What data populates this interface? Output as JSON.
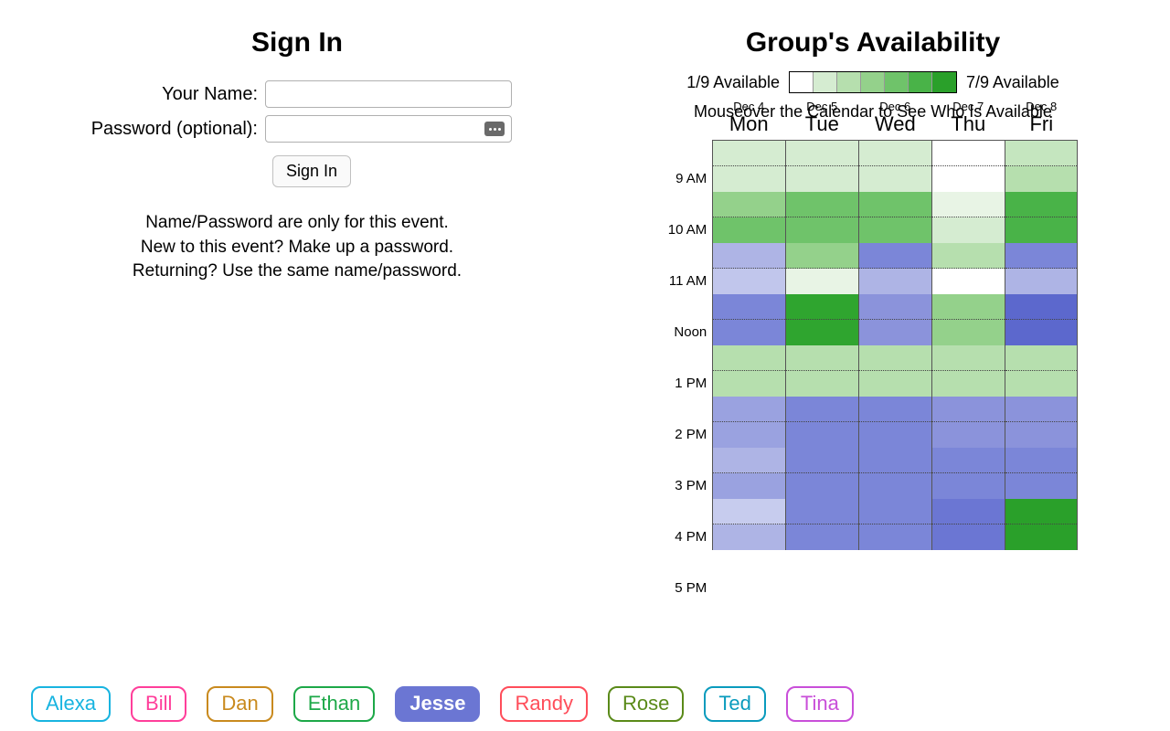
{
  "signin": {
    "title": "Sign In",
    "name_label": "Your Name:",
    "password_label": "Password (optional):",
    "button_label": "Sign In",
    "help_line1": "Name/Password are only for this event.",
    "help_line2": "New to this event? Make up a password.",
    "help_line3": "Returning? Use the same name/password."
  },
  "availability": {
    "title": "Group's Availability",
    "legend_min_label": "1/9 Available",
    "legend_max_label": "7/9 Available",
    "legend_colors": [
      "#ffffff",
      "#d5ecd1",
      "#b6dfae",
      "#94d18b",
      "#6fc36a",
      "#49b348",
      "#2aa02a"
    ],
    "mouseover_hint": "Mouseover the Calendar to See Who Is Available",
    "time_labels": [
      "9 AM",
      "10 AM",
      "11 AM",
      "Noon",
      "1 PM",
      "2 PM",
      "3 PM",
      "4 PM",
      "5 PM"
    ],
    "days": [
      {
        "date": "Dec 4",
        "name": "Mon"
      },
      {
        "date": "Dec 5",
        "name": "Tue"
      },
      {
        "date": "Dec 6",
        "name": "Wed"
      },
      {
        "date": "Dec 7",
        "name": "Thu"
      },
      {
        "date": "Dec 8",
        "name": "Fri"
      }
    ],
    "cells": [
      [
        [
          "#d5ecd1",
          "#d5ecd1"
        ],
        [
          "#94d18b",
          "#6fc36a"
        ],
        [
          "#aeb4e5",
          "#c1c6ec"
        ],
        [
          "#7b86d8",
          "#7b86d8"
        ],
        [
          "#b6dfae",
          "#b6dfae"
        ],
        [
          "#9aa2e0",
          "#9aa2e0"
        ],
        [
          "#aeb4e5",
          "#9aa2e0"
        ],
        [
          "#c7ccee",
          "#aeb4e5"
        ]
      ],
      [
        [
          "#d5ecd1",
          "#d5ecd1"
        ],
        [
          "#6fc36a",
          "#6fc36a"
        ],
        [
          "#94d18b",
          "#e8f4e5"
        ],
        [
          "#2fa52f",
          "#2fa52f"
        ],
        [
          "#b6dfae",
          "#b6dfae"
        ],
        [
          "#7b86d8",
          "#7b86d8"
        ],
        [
          "#7b86d8",
          "#7b86d8"
        ],
        [
          "#7b86d8",
          "#7b86d8"
        ]
      ],
      [
        [
          "#d5ecd1",
          "#d5ecd1"
        ],
        [
          "#6fc36a",
          "#6fc36a"
        ],
        [
          "#7b86d8",
          "#aeb4e5"
        ],
        [
          "#8b93db",
          "#8b93db"
        ],
        [
          "#b6dfae",
          "#b6dfae"
        ],
        [
          "#7b86d8",
          "#7b86d8"
        ],
        [
          "#7b86d8",
          "#7b86d8"
        ],
        [
          "#7b86d8",
          "#7b86d8"
        ]
      ],
      [
        [
          "#ffffff",
          "#ffffff"
        ],
        [
          "#e8f4e5",
          "#d5ecd1"
        ],
        [
          "#b6dfae",
          "#ffffff"
        ],
        [
          "#94d18b",
          "#94d18b"
        ],
        [
          "#b6dfae",
          "#b6dfae"
        ],
        [
          "#8b93db",
          "#8b93db"
        ],
        [
          "#7b86d8",
          "#7b86d8"
        ],
        [
          "#6b76d3",
          "#6b76d3"
        ]
      ],
      [
        [
          "#c5e6bf",
          "#b6dfae"
        ],
        [
          "#49b348",
          "#49b348"
        ],
        [
          "#7b86d8",
          "#aeb4e5"
        ],
        [
          "#5c68cd",
          "#5c68cd"
        ],
        [
          "#b6dfae",
          "#b6dfae"
        ],
        [
          "#8b93db",
          "#8b93db"
        ],
        [
          "#7b86d8",
          "#7b86d8"
        ],
        [
          "#2aa02a",
          "#2aa02a"
        ]
      ]
    ]
  },
  "people": [
    {
      "name": "Alexa",
      "color": "#18b4e0",
      "filled": false
    },
    {
      "name": "Bill",
      "color": "#ff3e9a",
      "filled": false
    },
    {
      "name": "Dan",
      "color": "#c98a1e",
      "filled": false
    },
    {
      "name": "Ethan",
      "color": "#1da848",
      "filled": false
    },
    {
      "name": "Jesse",
      "color": "#6b76d3",
      "filled": true
    },
    {
      "name": "Randy",
      "color": "#ff4d5a",
      "filled": false
    },
    {
      "name": "Rose",
      "color": "#5a8a19",
      "filled": false
    },
    {
      "name": "Ted",
      "color": "#0a9bbd",
      "filled": false
    },
    {
      "name": "Tina",
      "color": "#c94fd9",
      "filled": false
    }
  ]
}
